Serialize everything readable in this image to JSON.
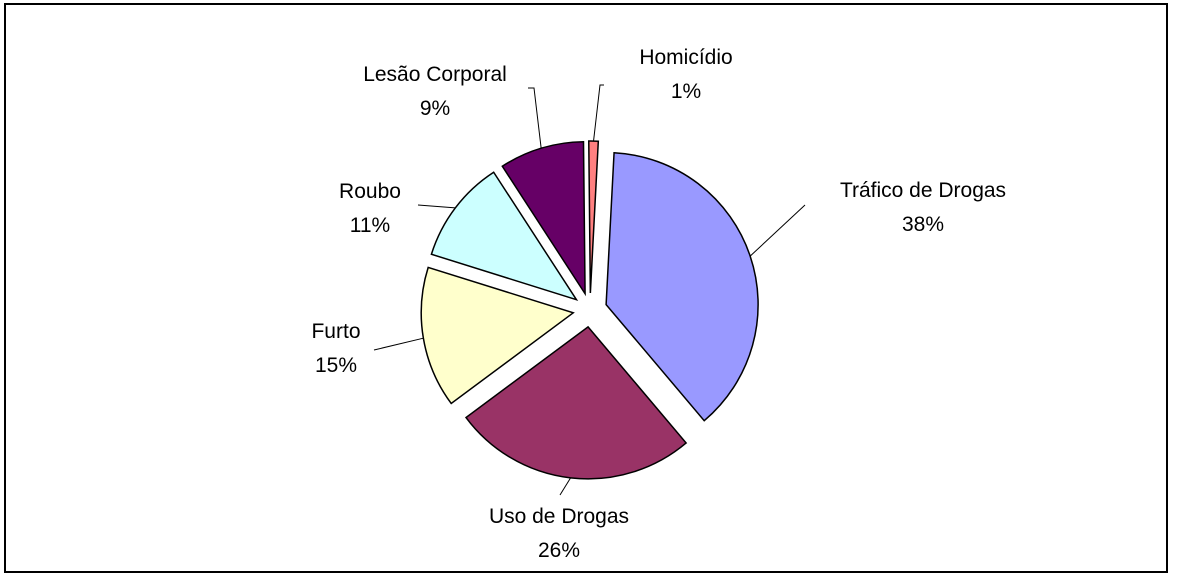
{
  "chart_data": {
    "type": "pie",
    "title": "",
    "slices": [
      {
        "label": "Tráfico de Drogas",
        "value": 38,
        "pct": "38%",
        "color": "#9999ff"
      },
      {
        "label": "Uso de Drogas",
        "value": 26,
        "pct": "26%",
        "color": "#993366"
      },
      {
        "label": "Furto",
        "value": 15,
        "pct": "15%",
        "color": "#ffffcc"
      },
      {
        "label": "Roubo",
        "value": 11,
        "pct": "11%",
        "color": "#ccffff"
      },
      {
        "label": "Lesão Corporal",
        "value": 9,
        "pct": "9%",
        "color": "#660066"
      },
      {
        "label": "Homicídio",
        "value": 1,
        "pct": "1%",
        "color": "#ff8080"
      }
    ],
    "exploded": true,
    "legend": "none"
  }
}
